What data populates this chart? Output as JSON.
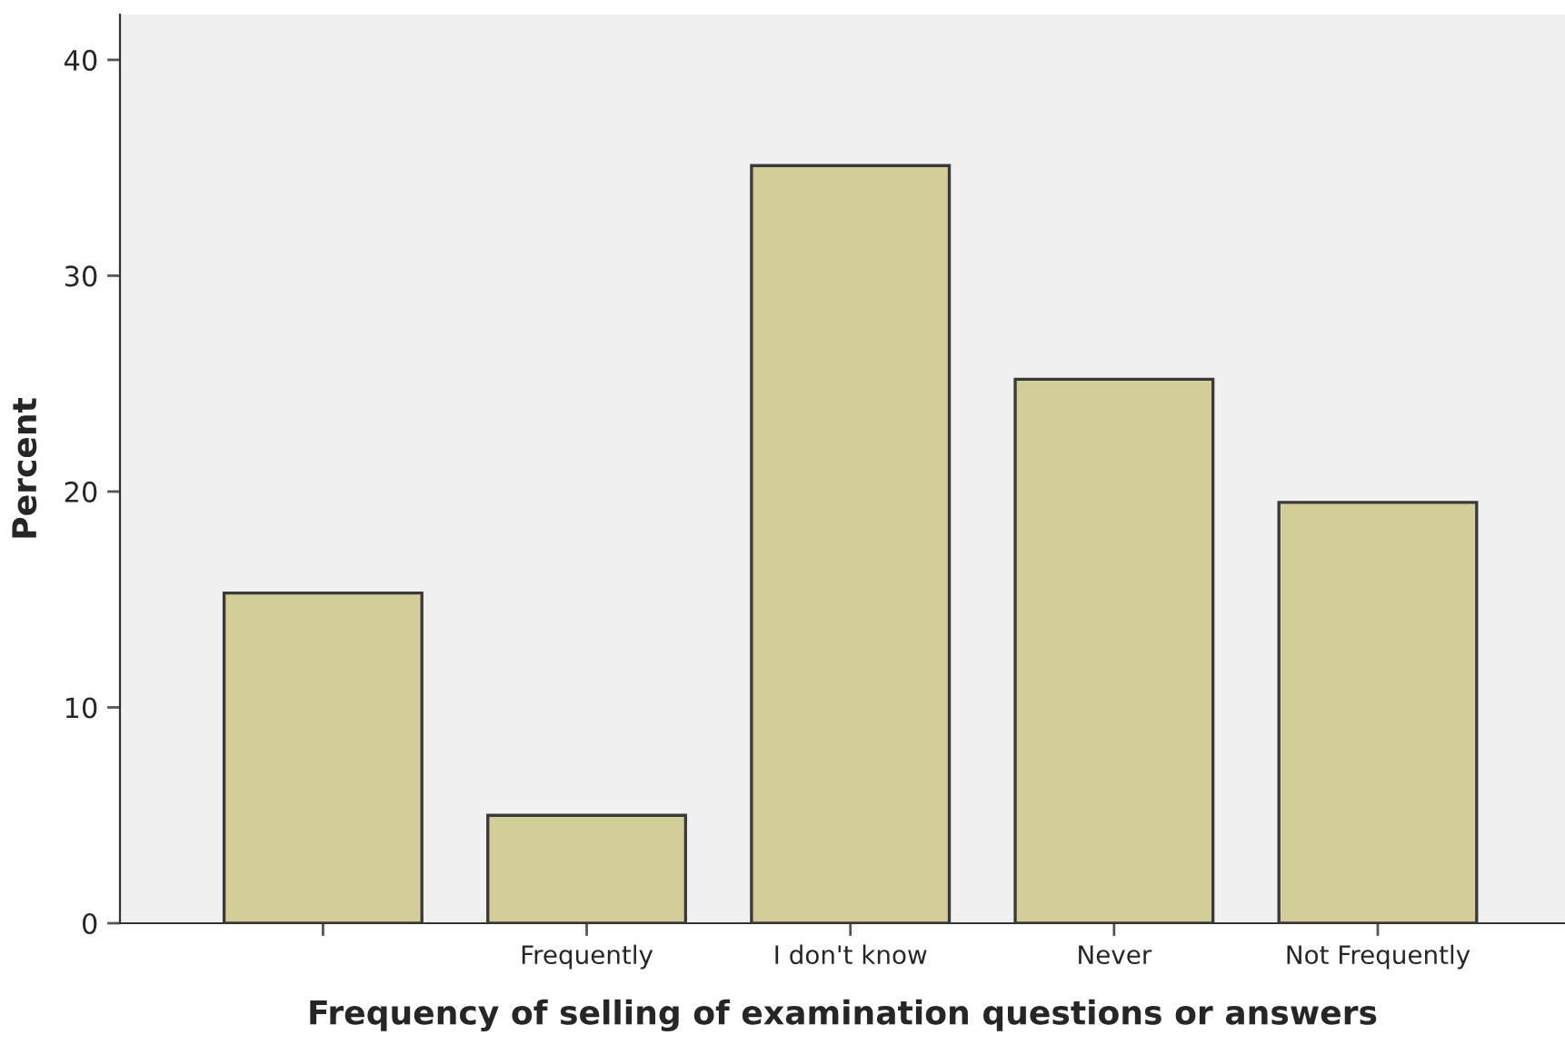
{
  "chart_data": {
    "type": "bar",
    "xlabel": "Frequency of selling of examination questions or answers",
    "ylabel": "Percent",
    "categories": [
      null,
      "Frequently",
      "I don't know",
      "Never",
      "Not Frequently"
    ],
    "values": [
      15.3,
      5.0,
      35.1,
      25.2,
      19.5
    ],
    "color": "#d3ce97",
    "ylim": [
      0,
      42.1
    ],
    "yticks": [
      0,
      10,
      20,
      30,
      40
    ],
    "grid": false
  }
}
